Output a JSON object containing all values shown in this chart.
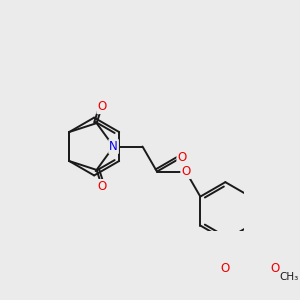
{
  "background_color": "#ebebeb",
  "bond_color": "#1a1a1a",
  "bond_width": 1.4,
  "atom_colors": {
    "N": "#0000ee",
    "O": "#ee0000",
    "C": "#1a1a1a"
  },
  "font_size_atom": 8.5,
  "figsize": [
    3.0,
    3.0
  ],
  "dpi": 100
}
